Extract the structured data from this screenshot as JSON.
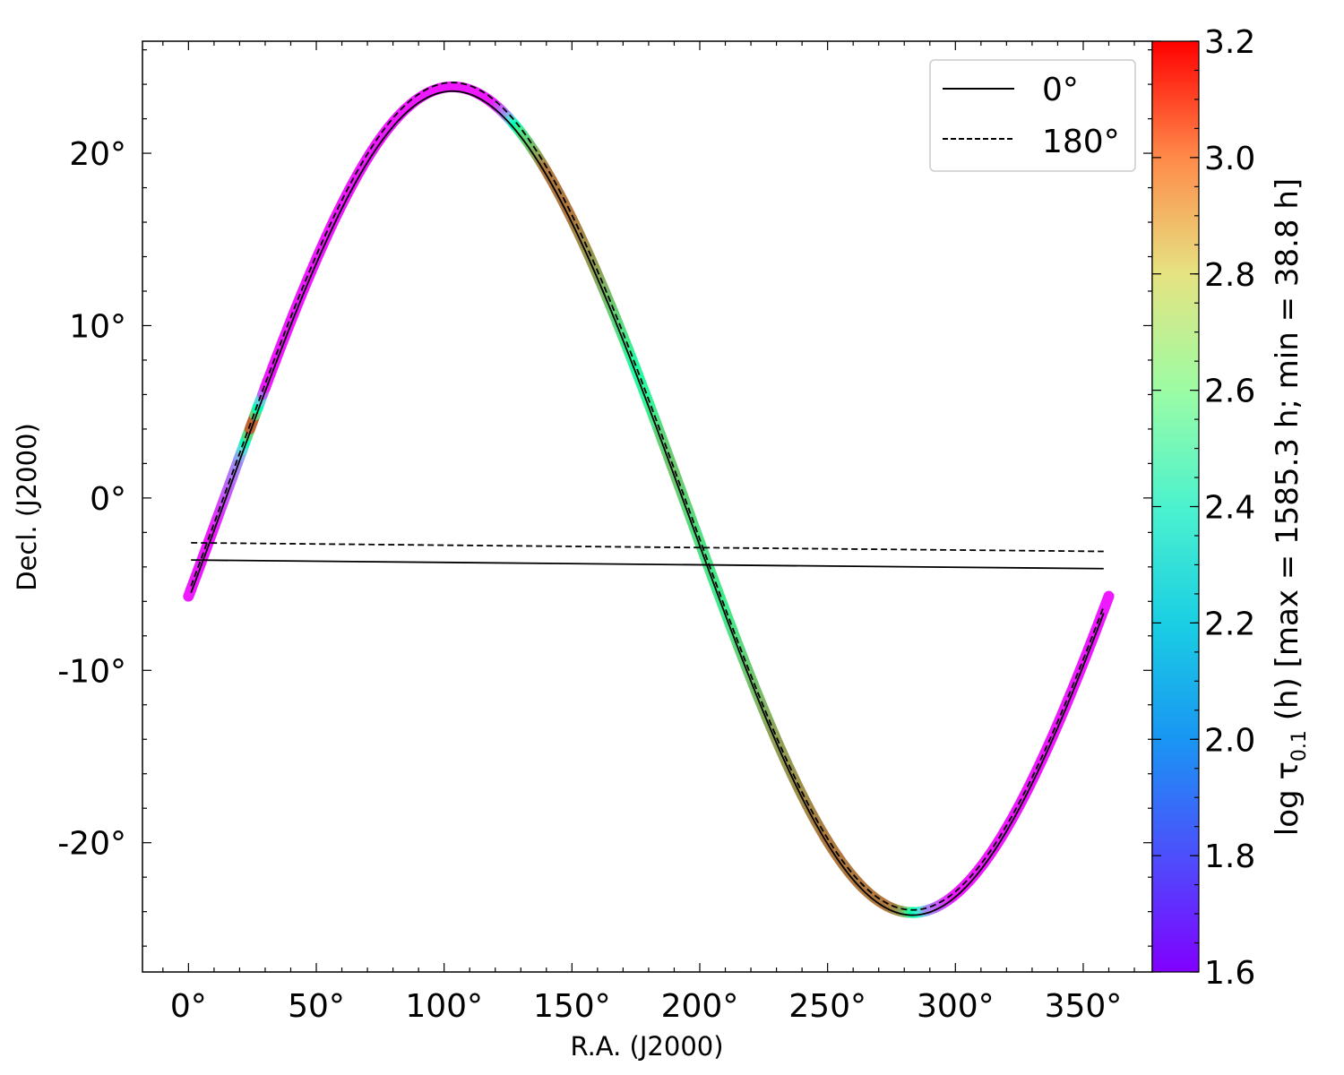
{
  "chart_data": {
    "type": "line",
    "title": "",
    "xlabel": "R.A. (J2000)",
    "ylabel": "Decl. (J2000)",
    "xlim": [
      -18,
      377
    ],
    "ylim": [
      -27.5,
      26.5
    ],
    "xticks": [
      0,
      50,
      100,
      150,
      200,
      250,
      300,
      350
    ],
    "xtick_labels": [
      "0°",
      "50°",
      "100°",
      "150°",
      "200°",
      "250°",
      "300°",
      "350°"
    ],
    "yticks": [
      -20,
      -10,
      0,
      10,
      20
    ],
    "ytick_labels": [
      "-20°",
      "-10°",
      "0°",
      "10°",
      "20°"
    ],
    "grid": false,
    "legend": {
      "position": "top-right",
      "entries": [
        {
          "label": "0°",
          "style": "solid"
        },
        {
          "label": "180°",
          "style": "dashed"
        }
      ]
    },
    "colorbar": {
      "label": "log τ",
      "label_sub": "0.1",
      "label_rest": " (h) [max = 1585.3 h; min = 38.8 h]",
      "range": [
        1.6,
        3.2
      ],
      "ticks": [
        1.6,
        1.8,
        2.0,
        2.2,
        2.4,
        2.6,
        2.8,
        3.0,
        3.2
      ],
      "tick_labels": [
        "1.6",
        "1.8",
        "2.0",
        "2.2",
        "2.4",
        "2.6",
        "2.8",
        "3.0",
        "3.2"
      ],
      "colormap": "rainbow"
    },
    "track": {
      "description": "ecliptic path colored by log tau",
      "ra": [
        0,
        10,
        20,
        22,
        25,
        30,
        40,
        50,
        60,
        70,
        80,
        90,
        95,
        100,
        110,
        120,
        125,
        130,
        140,
        150,
        160,
        170,
        175,
        180,
        185,
        190,
        195,
        200,
        210,
        220,
        230,
        240,
        250,
        260,
        270,
        275,
        280,
        290,
        300,
        310,
        320,
        330,
        340,
        350,
        360
      ],
      "logtau": [
        1.65,
        1.65,
        1.9,
        2.2,
        3.15,
        1.65,
        1.65,
        1.65,
        1.65,
        1.65,
        1.65,
        1.65,
        1.65,
        1.65,
        1.65,
        1.65,
        1.9,
        2.6,
        2.95,
        2.95,
        2.85,
        2.65,
        2.5,
        2.55,
        2.7,
        2.75,
        2.7,
        2.65,
        2.6,
        2.75,
        2.85,
        2.9,
        2.95,
        2.95,
        2.95,
        2.95,
        2.85,
        1.9,
        1.65,
        1.65,
        1.65,
        1.65,
        1.65,
        1.65,
        1.65
      ]
    },
    "series": [
      {
        "label": "0°",
        "style": "solid",
        "obliquity": 23.7,
        "offset": -0.3,
        "closing_segment": {
          "from": [
            1,
            -3.6
          ],
          "to": [
            358,
            -4.1
          ]
        }
      },
      {
        "label": "180°",
        "style": "dashed",
        "obliquity": 23.8,
        "offset": 0.1,
        "closing_segment": {
          "from": [
            1,
            -2.6
          ],
          "to": [
            358,
            -3.1
          ]
        }
      }
    ]
  }
}
